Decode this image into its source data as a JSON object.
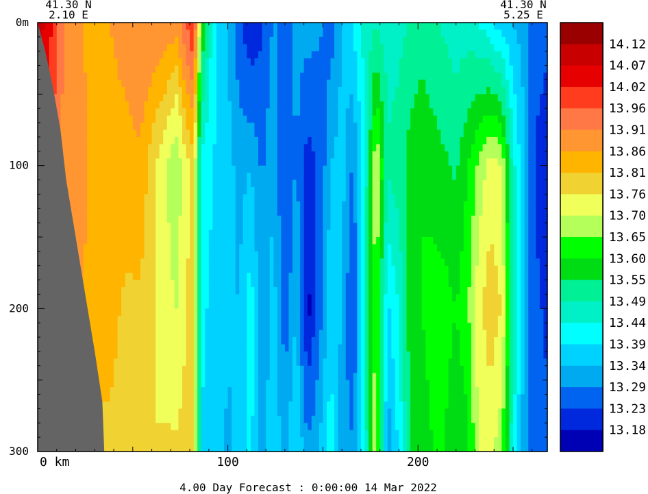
{
  "chart_data": {
    "type": "heatmap",
    "title": "",
    "footer": "4.00 Day Forecast :  0:00:00  14 Mar 2022",
    "corner_left": {
      "lat": "41.30 N",
      "lon": "2.10 E"
    },
    "corner_right": {
      "lat": "41.30 N",
      "lon": "5.25 E"
    },
    "xlabel": "",
    "ylabel": "",
    "x_unit": "km",
    "y_unit": "m",
    "xlim": [
      0,
      268
    ],
    "ylim": [
      300,
      0
    ],
    "x_ticks": [
      {
        "value": 0,
        "label": "0 km"
      },
      {
        "value": 100,
        "label": "100"
      },
      {
        "value": 200,
        "label": "200"
      }
    ],
    "y_ticks": [
      {
        "value": 0,
        "label": "0m"
      },
      {
        "value": 100,
        "label": "100"
      },
      {
        "value": 200,
        "label": "200"
      },
      {
        "value": 300,
        "label": "300"
      }
    ],
    "colorbar": {
      "labels": [
        "14.12",
        "14.07",
        "14.02",
        "13.96",
        "13.91",
        "13.86",
        "13.81",
        "13.76",
        "13.70",
        "13.65",
        "13.60",
        "13.55",
        "13.49",
        "13.44",
        "13.39",
        "13.34",
        "13.29",
        "13.23",
        "13.18"
      ],
      "colors": [
        "#9b0000",
        "#c80000",
        "#e60000",
        "#ff3c1e",
        "#ff7846",
        "#ff9632",
        "#ffb400",
        "#f0d232",
        "#f0ff5a",
        "#b4ff5a",
        "#00ff00",
        "#00dc14",
        "#00f096",
        "#00f0c8",
        "#00ffff",
        "#00d2ff",
        "#00aaf0",
        "#0064f0",
        "#0028dc",
        "#0000b4"
      ]
    },
    "land_color": "#646464",
    "land_boundary": [
      [
        0,
        0
      ],
      [
        4,
        20
      ],
      [
        8,
        45
      ],
      [
        12,
        75
      ],
      [
        15,
        110
      ],
      [
        20,
        150
      ],
      [
        25,
        190
      ],
      [
        30,
        230
      ],
      [
        34,
        265
      ],
      [
        35,
        300
      ]
    ],
    "sections": [
      {
        "x": 0,
        "temps": [
          14.1,
          14.0,
          13.96,
          13.96
        ]
      },
      {
        "x": 6,
        "temps": [
          14.05,
          13.96,
          13.92,
          13.91
        ]
      },
      {
        "x": 12,
        "temps": [
          13.92,
          13.91,
          13.9,
          13.88
        ]
      },
      {
        "x": 18,
        "temps": [
          13.88,
          13.89,
          13.88,
          13.86
        ]
      },
      {
        "x": 24,
        "temps": [
          13.86,
          13.87,
          13.86,
          13.82
        ]
      },
      {
        "x": 30,
        "temps": [
          13.84,
          13.85,
          13.83,
          13.8
        ]
      },
      {
        "x": 38,
        "temps": [
          13.86,
          13.84,
          13.83,
          13.8
        ]
      },
      {
        "x": 46,
        "temps": [
          13.88,
          13.84,
          13.8,
          13.78
        ]
      },
      {
        "x": 54,
        "temps": [
          13.91,
          13.85,
          13.8,
          13.77
        ]
      },
      {
        "x": 62,
        "temps": [
          13.91,
          13.76,
          13.76,
          13.76
        ]
      },
      {
        "x": 68,
        "temps": [
          13.9,
          13.7,
          13.72,
          13.77
        ]
      },
      {
        "x": 73,
        "temps": [
          13.88,
          13.65,
          13.7,
          13.77
        ]
      },
      {
        "x": 78,
        "temps": [
          13.96,
          13.74,
          13.76,
          13.78
        ]
      },
      {
        "x": 82,
        "temps": [
          14.02,
          13.78,
          13.78,
          13.79
        ]
      },
      {
        "x": 86,
        "temps": [
          13.62,
          13.42,
          13.4,
          13.39
        ]
      },
      {
        "x": 92,
        "temps": [
          13.42,
          13.39,
          13.38,
          13.36
        ]
      },
      {
        "x": 100,
        "temps": [
          13.34,
          13.36,
          13.35,
          13.33
        ]
      },
      {
        "x": 106,
        "temps": [
          13.25,
          13.32,
          13.34,
          13.35
        ]
      },
      {
        "x": 112,
        "temps": [
          13.18,
          13.34,
          13.42,
          13.4
        ]
      },
      {
        "x": 118,
        "temps": [
          13.22,
          13.28,
          13.3,
          13.32
        ]
      },
      {
        "x": 124,
        "temps": [
          13.3,
          13.34,
          13.36,
          13.38
        ]
      },
      {
        "x": 130,
        "temps": [
          13.28,
          13.22,
          13.26,
          13.32
        ]
      },
      {
        "x": 136,
        "temps": [
          13.3,
          13.3,
          13.34,
          13.4
        ]
      },
      {
        "x": 142,
        "temps": [
          13.32,
          13.2,
          13.16,
          13.3
        ]
      },
      {
        "x": 148,
        "temps": [
          13.3,
          13.24,
          13.26,
          13.34
        ]
      },
      {
        "x": 154,
        "temps": [
          13.26,
          13.34,
          13.38,
          13.42
        ]
      },
      {
        "x": 160,
        "temps": [
          13.34,
          13.36,
          13.34,
          13.3
        ]
      },
      {
        "x": 166,
        "temps": [
          13.4,
          13.28,
          13.22,
          13.3
        ]
      },
      {
        "x": 172,
        "temps": [
          13.46,
          13.44,
          13.48,
          13.44
        ]
      },
      {
        "x": 178,
        "temps": [
          13.48,
          13.72,
          13.66,
          13.72
        ]
      },
      {
        "x": 184,
        "temps": [
          13.46,
          13.5,
          13.38,
          13.3
        ]
      },
      {
        "x": 190,
        "temps": [
          13.47,
          13.52,
          13.44,
          13.4
        ]
      },
      {
        "x": 196,
        "temps": [
          13.5,
          13.58,
          13.58,
          13.56
        ]
      },
      {
        "x": 202,
        "temps": [
          13.52,
          13.6,
          13.6,
          13.58
        ]
      },
      {
        "x": 208,
        "temps": [
          13.5,
          13.58,
          13.62,
          13.6
        ]
      },
      {
        "x": 214,
        "temps": [
          13.48,
          13.56,
          13.62,
          13.6
        ]
      },
      {
        "x": 220,
        "temps": [
          13.46,
          13.54,
          13.6,
          13.56
        ]
      },
      {
        "x": 226,
        "temps": [
          13.46,
          13.6,
          13.64,
          13.58
        ]
      },
      {
        "x": 232,
        "temps": [
          13.44,
          13.66,
          13.74,
          13.7
        ]
      },
      {
        "x": 238,
        "temps": [
          13.4,
          13.72,
          13.8,
          13.72
        ]
      },
      {
        "x": 244,
        "temps": [
          13.36,
          13.7,
          13.76,
          13.66
        ]
      },
      {
        "x": 250,
        "temps": [
          13.34,
          13.46,
          13.5,
          13.44
        ]
      },
      {
        "x": 256,
        "temps": [
          13.32,
          13.34,
          13.34,
          13.3
        ]
      },
      {
        "x": 262,
        "temps": [
          13.26,
          13.22,
          13.24,
          13.26
        ]
      },
      {
        "x": 268,
        "temps": [
          13.24,
          13.2,
          13.22,
          13.24
        ]
      }
    ]
  }
}
